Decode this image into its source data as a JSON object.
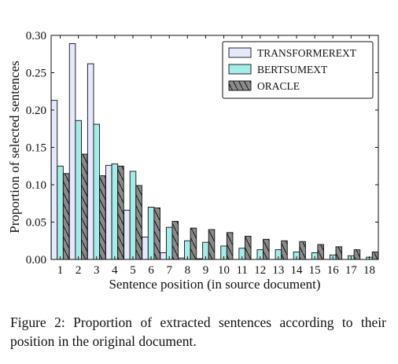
{
  "chart_data": {
    "type": "bar",
    "xlabel": "Sentence position (in source document)",
    "ylabel": "Proportion of selected sentences",
    "ylim": [
      0,
      0.3
    ],
    "yticks": [
      "0.00",
      "0.05",
      "0.10",
      "0.15",
      "0.20",
      "0.25",
      "0.30"
    ],
    "categories": [
      "1",
      "2",
      "3",
      "4",
      "5",
      "6",
      "7",
      "8",
      "9",
      "10",
      "11",
      "12",
      "13",
      "14",
      "15",
      "16",
      "17",
      "18"
    ],
    "legend_position": "top-right",
    "series": [
      {
        "name": "TRANSFORMEREXT",
        "color": "#e6e8fb",
        "hatch": "none",
        "values": [
          0.213,
          0.289,
          0.262,
          0.126,
          0.066,
          0.03,
          0.009,
          0.002,
          0.001,
          0.0,
          0.0,
          0.0,
          0.0,
          0.0,
          0.0,
          0.0,
          0.0,
          0.0
        ]
      },
      {
        "name": "BERTSUMEXT",
        "color": "#a4ece8",
        "hatch": "none",
        "values": [
          0.125,
          0.186,
          0.181,
          0.128,
          0.118,
          0.07,
          0.043,
          0.025,
          0.023,
          0.018,
          0.015,
          0.013,
          0.013,
          0.01,
          0.009,
          0.006,
          0.005,
          0.003
        ]
      },
      {
        "name": "ORACLE",
        "color": "#8a8a8a",
        "hatch": "backslash",
        "values": [
          0.115,
          0.141,
          0.112,
          0.125,
          0.099,
          0.069,
          0.051,
          0.042,
          0.04,
          0.036,
          0.031,
          0.027,
          0.025,
          0.024,
          0.02,
          0.017,
          0.013,
          0.01
        ]
      }
    ]
  },
  "caption": "Figure 2: Proportion of extracted sentences according to their position in the original document."
}
